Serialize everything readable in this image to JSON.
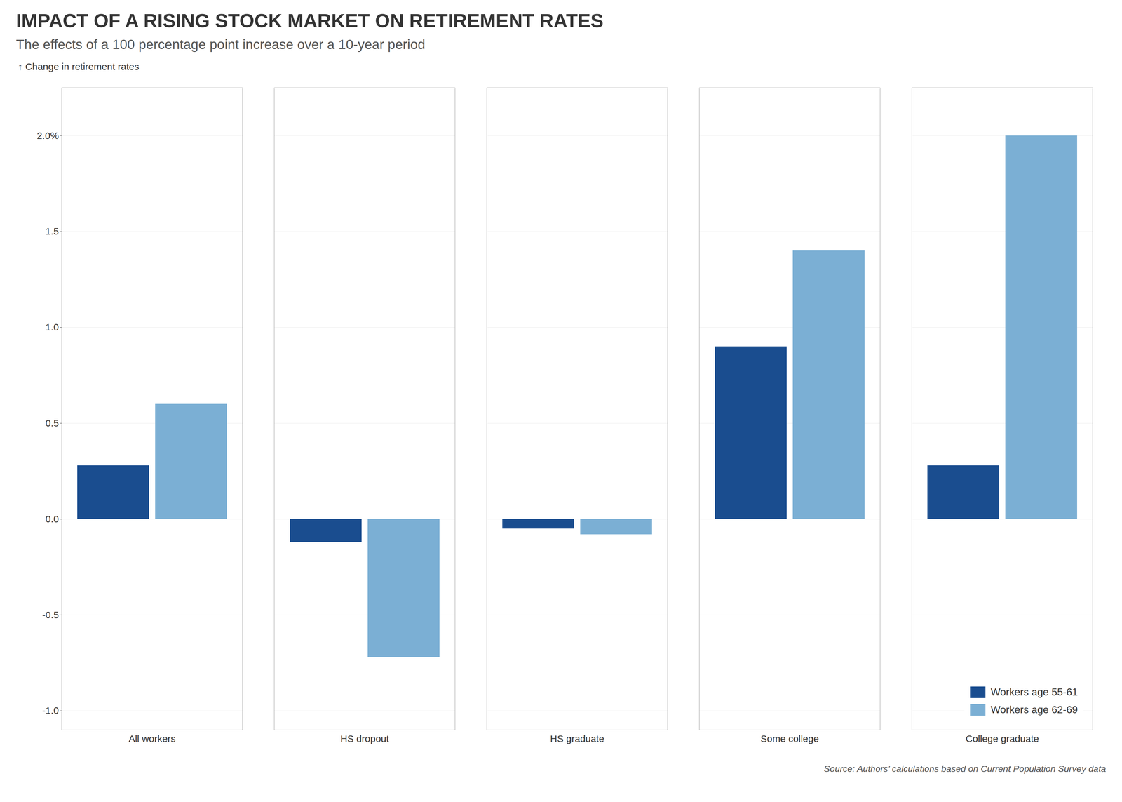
{
  "chart_data": {
    "type": "bar",
    "title": "IMPACT OF A RISING STOCK MARKET ON RETIREMENT RATES",
    "subtitle": "The effects of a 100 percentage point increase over a 10-year period",
    "ylabel": "Change in retirement rates",
    "source": "Source: Authors’ calculations based on Current Population Survey data",
    "categories": [
      "All workers",
      "HS dropout",
      "HS graduate",
      "Some college",
      "College graduate"
    ],
    "series": [
      {
        "name": "Workers age 55-61",
        "color": "#1a4d8f",
        "values": [
          0.28,
          -0.12,
          -0.05,
          0.9,
          0.28
        ]
      },
      {
        "name": "Workers age 62-69",
        "color": "#7bafd4",
        "values": [
          0.6,
          -0.72,
          -0.08,
          1.4,
          2.0
        ]
      }
    ],
    "ylim": [
      -1.1,
      2.25
    ],
    "yticks": [
      {
        "value": -1.0,
        "label": "-1.0"
      },
      -0.5,
      {
        "value": 0,
        "label": "0.0"
      },
      0.5,
      {
        "value": 1.0,
        "label": "1.0"
      },
      1.5,
      {
        "value": 2.0,
        "label": "2.0%"
      }
    ],
    "grid": true,
    "legend": "lower right"
  }
}
